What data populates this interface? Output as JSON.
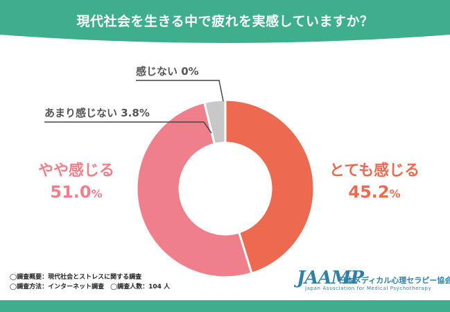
{
  "header": {
    "title": "現代社会を生きる中で疲れを実感していますか？"
  },
  "chart_data": {
    "type": "pie",
    "title": "現代社会を生きる中で疲れを実感していますか？",
    "unit": "%",
    "slices": [
      {
        "label": "とても感じる",
        "value": 45.2,
        "value_text": "45.2",
        "color": "#ec6a50"
      },
      {
        "label": "やや感じる",
        "value": 51.0,
        "value_text": "51.0",
        "color": "#ee7f8b"
      },
      {
        "label": "あまり感じない",
        "value": 3.8,
        "value_text": "3.8%",
        "color": "#c8c8c8"
      },
      {
        "label": "感じない",
        "value": 0,
        "value_text": "0%",
        "color": "#9e9e9e"
      }
    ],
    "donut": true
  },
  "notes": {
    "line1": "◯調査概要：現代社会とストレスに関する調査",
    "line2": "◯調査方法：インターネット調査　◯調査人数：104 人"
  },
  "logo": {
    "mark": "JAAMP",
    "name_jp": "日本メディカル心理セラピー協会",
    "name_en": "Japan Association for Medical Psychotherapy"
  },
  "colors": {
    "accent": "#3fae8c",
    "text_gray": "#555555"
  }
}
